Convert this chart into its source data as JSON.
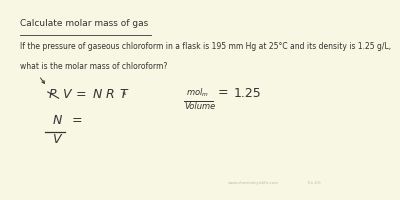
{
  "background_color": "#f8f7e3",
  "title": "Calculate molar mass of gas",
  "problem_line1": "If the pressure of gaseous chloroform in a flask is 195 mm Hg at 25°C and its density is 1.25 g/L,",
  "problem_line2": "what is the molar mass of chloroform?",
  "watermark": "www.chemistryislife.com",
  "watermark2": "Ex 4.6",
  "text_color": "#333333",
  "light_text_color": "#aaaaaa"
}
